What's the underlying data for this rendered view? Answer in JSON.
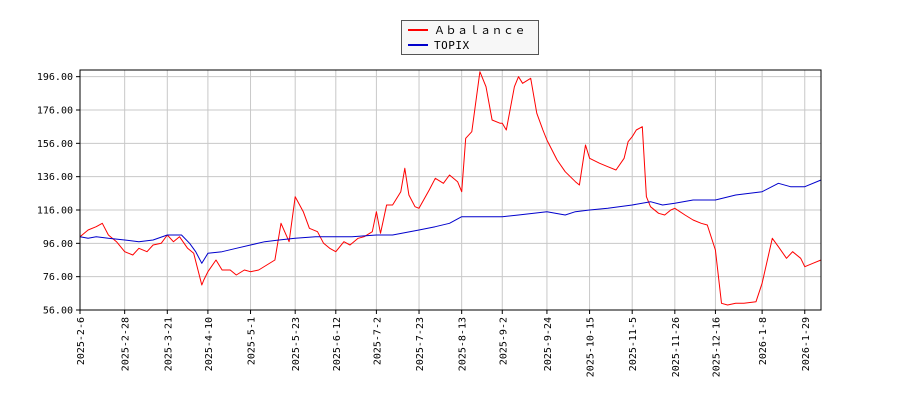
{
  "chart_data": {
    "type": "line",
    "title": "",
    "xlabel": "",
    "ylabel": "",
    "ylim": [
      56,
      200
    ],
    "yticks": [
      "56.00",
      "76.00",
      "96.00",
      "116.00",
      "136.00",
      "156.00",
      "176.00",
      "196.00"
    ],
    "ytick_values": [
      56,
      76,
      96,
      116,
      136,
      156,
      176,
      196
    ],
    "xticks": [
      "2025-2-6",
      "2025-2-28",
      "2025-3-21",
      "2025-4-10",
      "2025-5-1",
      "2025-5-23",
      "2025-6-12",
      "2025-7-2",
      "2025-7-23",
      "2025-8-13",
      "2025-9-2",
      "2025-9-24",
      "2025-10-15",
      "2025-11-5",
      "2025-11-26",
      "2025-12-16",
      "2026-1-8",
      "2026-1-29"
    ],
    "grid": true,
    "legend_placement": "top-center",
    "series": [
      {
        "name": "Ａｂａｌａｎｃｅ",
        "color": "#ff0000",
        "points": [
          [
            "2025-2-6",
            100
          ],
          [
            "2025-2-10",
            104
          ],
          [
            "2025-2-14",
            106
          ],
          [
            "2025-2-17",
            108
          ],
          [
            "2025-2-20",
            101
          ],
          [
            "2025-2-24",
            97
          ],
          [
            "2025-2-28",
            91
          ],
          [
            "2025-3-4",
            89
          ],
          [
            "2025-3-7",
            93
          ],
          [
            "2025-3-11",
            91
          ],
          [
            "2025-3-14",
            95
          ],
          [
            "2025-3-18",
            96
          ],
          [
            "2025-3-21",
            101
          ],
          [
            "2025-3-24",
            97
          ],
          [
            "2025-3-27",
            100
          ],
          [
            "2025-3-31",
            93
          ],
          [
            "2025-4-3",
            90
          ],
          [
            "2025-4-7",
            71
          ],
          [
            "2025-4-8",
            74
          ],
          [
            "2025-4-10",
            79
          ],
          [
            "2025-4-14",
            86
          ],
          [
            "2025-4-17",
            80
          ],
          [
            "2025-4-21",
            80
          ],
          [
            "2025-4-24",
            77
          ],
          [
            "2025-4-28",
            80
          ],
          [
            "2025-5-1",
            79
          ],
          [
            "2025-5-5",
            80
          ],
          [
            "2025-5-9",
            83
          ],
          [
            "2025-5-13",
            86
          ],
          [
            "2025-5-16",
            108
          ],
          [
            "2025-5-20",
            97
          ],
          [
            "2025-5-23",
            124
          ],
          [
            "2025-5-27",
            115
          ],
          [
            "2025-5-30",
            105
          ],
          [
            "2025-6-3",
            103
          ],
          [
            "2025-6-6",
            96
          ],
          [
            "2025-6-9",
            93
          ],
          [
            "2025-6-12",
            91
          ],
          [
            "2025-6-16",
            97
          ],
          [
            "2025-6-19",
            95
          ],
          [
            "2025-6-23",
            99
          ],
          [
            "2025-6-26",
            100
          ],
          [
            "2025-6-30",
            103
          ],
          [
            "2025-7-2",
            115
          ],
          [
            "2025-7-4",
            102
          ],
          [
            "2025-7-7",
            119
          ],
          [
            "2025-7-10",
            119
          ],
          [
            "2025-7-14",
            127
          ],
          [
            "2025-7-16",
            141
          ],
          [
            "2025-7-18",
            125
          ],
          [
            "2025-7-21",
            118
          ],
          [
            "2025-7-23",
            117
          ],
          [
            "2025-7-28",
            128
          ],
          [
            "2025-7-31",
            135
          ],
          [
            "2025-8-4",
            132
          ],
          [
            "2025-8-7",
            137
          ],
          [
            "2025-8-11",
            133
          ],
          [
            "2025-8-13",
            127
          ],
          [
            "2025-8-15",
            159
          ],
          [
            "2025-8-18",
            163
          ],
          [
            "2025-8-22",
            199
          ],
          [
            "2025-8-25",
            190
          ],
          [
            "2025-8-28",
            170
          ],
          [
            "2025-9-1",
            168
          ],
          [
            "2025-9-2",
            168
          ],
          [
            "2025-9-4",
            164
          ],
          [
            "2025-9-8",
            190
          ],
          [
            "2025-9-10",
            196
          ],
          [
            "2025-9-12",
            192
          ],
          [
            "2025-9-16",
            195
          ],
          [
            "2025-9-19",
            174
          ],
          [
            "2025-9-22",
            164
          ],
          [
            "2025-9-24",
            158
          ],
          [
            "2025-9-29",
            146
          ],
          [
            "2025-10-3",
            139
          ],
          [
            "2025-10-8",
            133
          ],
          [
            "2025-10-10",
            131
          ],
          [
            "2025-10-13",
            155
          ],
          [
            "2025-10-15",
            147
          ],
          [
            "2025-10-20",
            144
          ],
          [
            "2025-10-24",
            142
          ],
          [
            "2025-10-28",
            140
          ],
          [
            "2025-11-1",
            147
          ],
          [
            "2025-11-3",
            157
          ],
          [
            "2025-11-5",
            160
          ],
          [
            "2025-11-7",
            164
          ],
          [
            "2025-11-10",
            166
          ],
          [
            "2025-11-12",
            124
          ],
          [
            "2025-11-14",
            118
          ],
          [
            "2025-11-18",
            114
          ],
          [
            "2025-11-21",
            113
          ],
          [
            "2025-11-24",
            116
          ],
          [
            "2025-11-26",
            117
          ],
          [
            "2025-12-1",
            113
          ],
          [
            "2025-12-5",
            110
          ],
          [
            "2025-12-9",
            108
          ],
          [
            "2025-12-12",
            107
          ],
          [
            "2025-12-16",
            92
          ],
          [
            "2025-12-19",
            60
          ],
          [
            "2025-12-22",
            59
          ],
          [
            "2025-12-26",
            60
          ],
          [
            "2025-12-30",
            60
          ],
          [
            "2026-1-5",
            61
          ],
          [
            "2026-1-8",
            72
          ],
          [
            "2026-1-13",
            99
          ],
          [
            "2026-1-16",
            94
          ],
          [
            "2026-1-20",
            87
          ],
          [
            "2026-1-23",
            91
          ],
          [
            "2026-1-27",
            87
          ],
          [
            "2026-1-29",
            82
          ],
          [
            "2026-2-2",
            84
          ],
          [
            "2026-2-6",
            86
          ]
        ]
      },
      {
        "name": "TOPIX",
        "color": "#0000cc",
        "points": [
          [
            "2025-2-6",
            100
          ],
          [
            "2025-2-10",
            99
          ],
          [
            "2025-2-14",
            100
          ],
          [
            "2025-2-20",
            99
          ],
          [
            "2025-2-28",
            98
          ],
          [
            "2025-3-7",
            97
          ],
          [
            "2025-3-14",
            98
          ],
          [
            "2025-3-21",
            101
          ],
          [
            "2025-3-28",
            101
          ],
          [
            "2025-4-1",
            96
          ],
          [
            "2025-4-4",
            91
          ],
          [
            "2025-4-7",
            84
          ],
          [
            "2025-4-10",
            90
          ],
          [
            "2025-4-17",
            91
          ],
          [
            "2025-4-24",
            93
          ],
          [
            "2025-5-1",
            95
          ],
          [
            "2025-5-8",
            97
          ],
          [
            "2025-5-15",
            98
          ],
          [
            "2025-5-23",
            99
          ],
          [
            "2025-6-2",
            100
          ],
          [
            "2025-6-12",
            100
          ],
          [
            "2025-6-20",
            100
          ],
          [
            "2025-7-2",
            101
          ],
          [
            "2025-7-10",
            101
          ],
          [
            "2025-7-23",
            104
          ],
          [
            "2025-7-31",
            106
          ],
          [
            "2025-8-7",
            108
          ],
          [
            "2025-8-13",
            112
          ],
          [
            "2025-8-22",
            112
          ],
          [
            "2025-9-2",
            112
          ],
          [
            "2025-9-10",
            113
          ],
          [
            "2025-9-24",
            115
          ],
          [
            "2025-10-3",
            113
          ],
          [
            "2025-10-8",
            115
          ],
          [
            "2025-10-15",
            116
          ],
          [
            "2025-10-24",
            117
          ],
          [
            "2025-11-5",
            119
          ],
          [
            "2025-11-14",
            121
          ],
          [
            "2025-11-20",
            119
          ],
          [
            "2025-11-26",
            120
          ],
          [
            "2025-12-5",
            122
          ],
          [
            "2025-12-16",
            122
          ],
          [
            "2025-12-26",
            125
          ],
          [
            "2026-1-8",
            127
          ],
          [
            "2026-1-16",
            132
          ],
          [
            "2026-1-22",
            130
          ],
          [
            "2026-1-29",
            130
          ],
          [
            "2026-2-6",
            134
          ]
        ]
      }
    ]
  }
}
